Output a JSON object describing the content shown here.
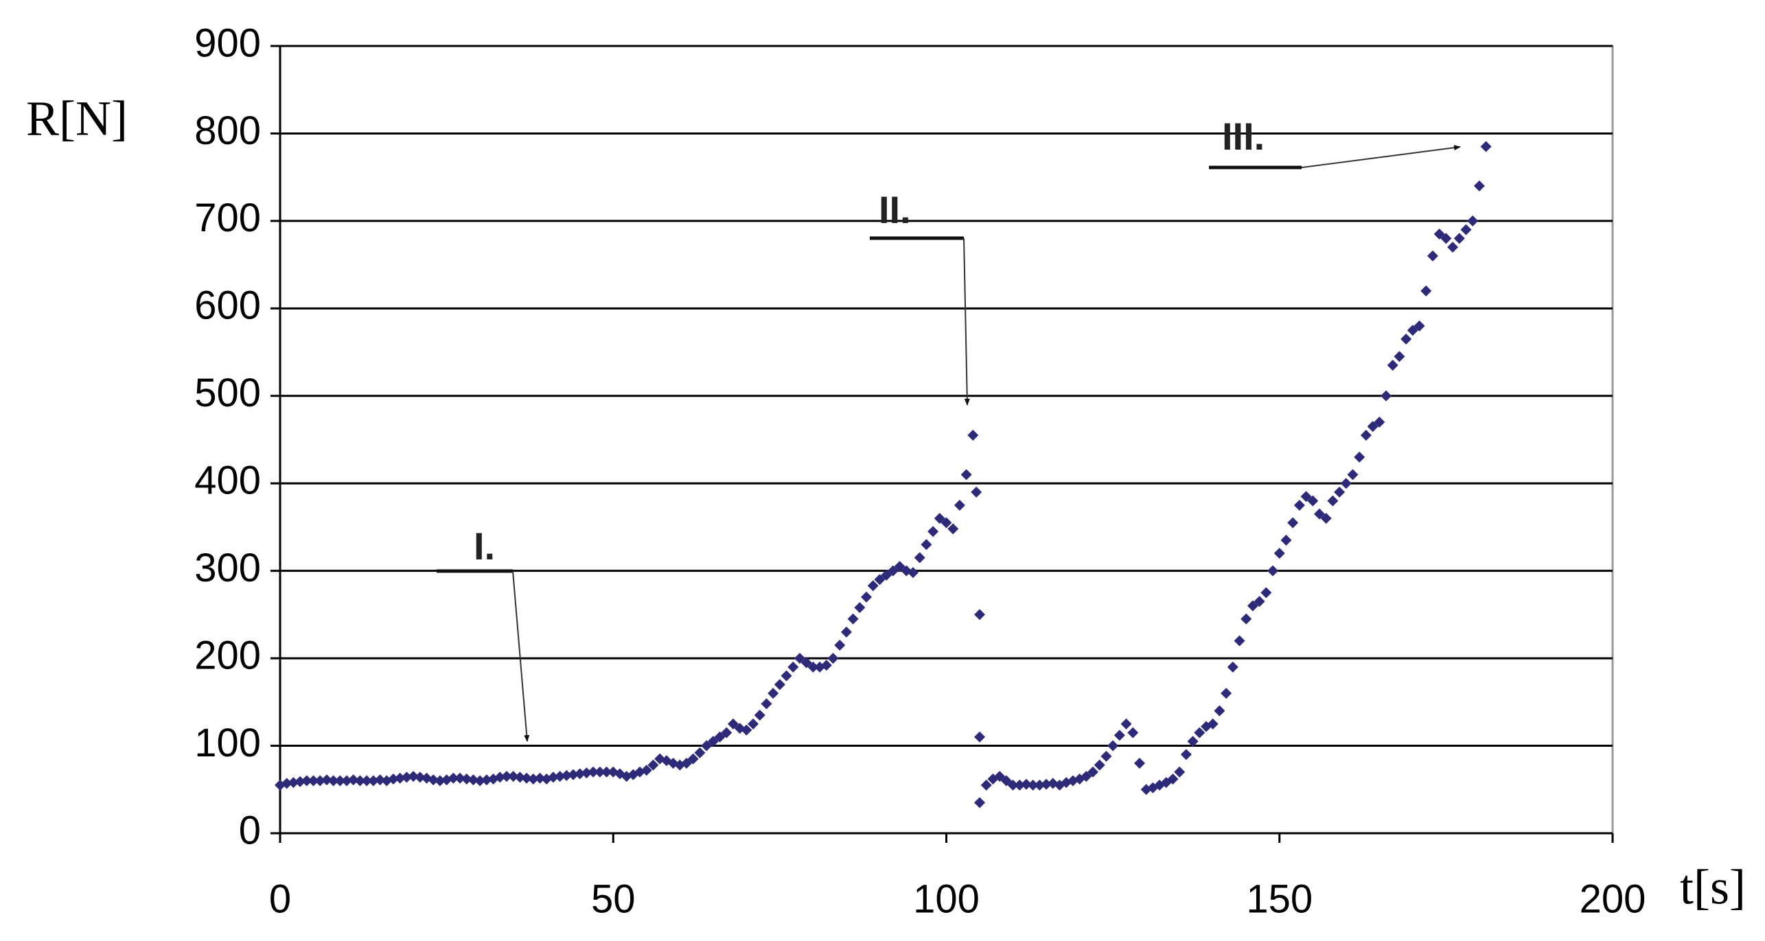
{
  "chart_data": {
    "type": "scatter",
    "y_label": "R[N]",
    "x_label": "t[s]",
    "xlim": [
      0,
      200
    ],
    "xticks": [
      0,
      50,
      100,
      150,
      200
    ],
    "ylim": [
      0,
      900
    ],
    "yticks": [
      0,
      100,
      200,
      300,
      400,
      500,
      600,
      700,
      800,
      900
    ],
    "grid": true,
    "annotations": [
      "I.",
      "II.",
      "III."
    ],
    "series": [
      {
        "color": "#2e2a7a",
        "x": [
          0,
          1,
          2,
          3,
          4,
          5,
          6,
          7,
          8,
          9,
          10,
          11,
          12,
          13,
          14,
          15,
          16,
          17,
          18,
          19,
          20,
          21,
          22,
          23,
          24,
          25,
          26,
          27,
          28,
          29,
          30,
          31,
          32,
          33,
          34,
          35,
          36,
          37,
          38,
          39,
          40,
          41,
          42,
          43,
          44,
          45,
          46,
          47,
          48,
          49,
          50,
          51,
          52,
          53,
          54,
          55,
          56,
          57,
          58,
          59,
          60,
          61,
          62,
          63,
          64,
          65,
          66,
          67,
          68,
          69,
          70,
          71,
          72,
          73,
          74,
          75,
          76,
          77,
          78,
          79,
          80,
          81,
          82,
          83,
          84,
          85,
          86,
          87,
          88,
          89,
          90,
          91,
          92,
          93,
          94,
          95,
          96,
          97,
          98,
          99,
          100,
          101,
          102,
          103,
          104,
          104.5,
          105,
          105,
          105,
          106,
          107,
          108,
          109,
          110,
          111,
          112,
          113,
          114,
          115,
          116,
          117,
          118,
          119,
          120,
          121,
          122,
          123,
          124,
          125,
          126,
          127,
          128,
          129,
          130,
          131,
          132,
          133,
          134,
          135,
          136,
          137,
          138,
          139,
          140,
          141,
          142,
          143,
          144,
          145,
          146,
          147,
          148,
          149,
          150,
          151,
          152,
          153,
          154,
          155,
          156,
          157,
          158,
          159,
          160,
          161,
          162,
          163,
          164,
          165,
          166,
          167,
          168,
          169,
          170,
          171,
          172,
          173,
          174,
          175,
          176,
          177,
          178,
          179,
          180,
          181
        ],
        "values": [
          55,
          57,
          58,
          59,
          60,
          60,
          60,
          61,
          60,
          60,
          60,
          61,
          60,
          60,
          60,
          61,
          60,
          62,
          63,
          64,
          65,
          64,
          63,
          61,
          60,
          61,
          63,
          63,
          62,
          61,
          60,
          61,
          62,
          64,
          65,
          65,
          64,
          63,
          62,
          63,
          62,
          64,
          65,
          66,
          67,
          68,
          69,
          70,
          70,
          70,
          70,
          68,
          65,
          67,
          70,
          72,
          78,
          85,
          83,
          80,
          78,
          80,
          85,
          92,
          100,
          105,
          110,
          115,
          125,
          120,
          118,
          125,
          135,
          148,
          160,
          170,
          180,
          190,
          200,
          195,
          190,
          190,
          192,
          200,
          215,
          230,
          245,
          258,
          270,
          283,
          290,
          295,
          300,
          305,
          300,
          298,
          315,
          330,
          345,
          360,
          355,
          348,
          375,
          410,
          455,
          390,
          250,
          110,
          35,
          55,
          62,
          65,
          60,
          55,
          55,
          56,
          55,
          55,
          56,
          57,
          55,
          58,
          60,
          62,
          65,
          70,
          78,
          88,
          100,
          112,
          125,
          115,
          80,
          50,
          52,
          55,
          58,
          62,
          70,
          90,
          105,
          115,
          122,
          125,
          140,
          160,
          190,
          220,
          245,
          260,
          265,
          275,
          300,
          320,
          335,
          355,
          375,
          385,
          380,
          365,
          360,
          380,
          390,
          400,
          410,
          430,
          455,
          465,
          470,
          500,
          535,
          545,
          565,
          575,
          580,
          620,
          660,
          685,
          680,
          670,
          680,
          690,
          700,
          740,
          785
        ]
      }
    ]
  }
}
